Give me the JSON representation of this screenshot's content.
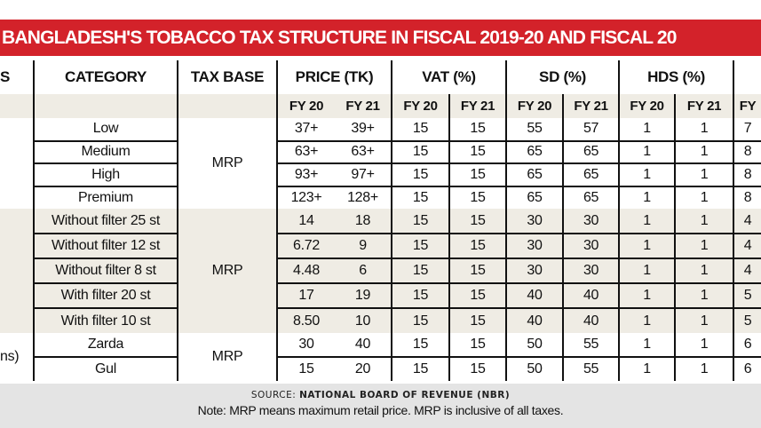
{
  "title": "BANGLADESH'S TOBACCO TAX STRUCTURE IN FISCAL 2019-20 AND FISCAL 20",
  "colors": {
    "title_bar": "#d3222a",
    "row_band": "#efece4",
    "footer_bg": "#e4e4e4"
  },
  "table": {
    "headers": {
      "first_partial": "S",
      "category": "CATEGORY",
      "tax_base": "TAX BASE",
      "price": "PRICE (TK)",
      "vat": "VAT (%)",
      "sd": "SD (%)",
      "hds": "HDS (%)",
      "last_partial": ""
    },
    "fy_labels": {
      "fy20": "FY 20",
      "fy21": "FY 21",
      "last_partial": "FY"
    },
    "groups": [
      {
        "label": "",
        "tax_base": "MRP",
        "banded": false,
        "rows": [
          {
            "category": "Low",
            "price": [
              "37+",
              "39+"
            ],
            "vat": [
              "15",
              "15"
            ],
            "sd": [
              "55",
              "57"
            ],
            "hds": [
              "1",
              "1"
            ],
            "last_partial": "7"
          },
          {
            "category": "Medium",
            "price": [
              "63+",
              "63+"
            ],
            "vat": [
              "15",
              "15"
            ],
            "sd": [
              "65",
              "65"
            ],
            "hds": [
              "1",
              "1"
            ],
            "last_partial": "8"
          },
          {
            "category": "High",
            "price": [
              "93+",
              "97+"
            ],
            "vat": [
              "15",
              "15"
            ],
            "sd": [
              "65",
              "65"
            ],
            "hds": [
              "1",
              "1"
            ],
            "last_partial": "8"
          },
          {
            "category": "Premium",
            "price": [
              "123+",
              "128+"
            ],
            "vat": [
              "15",
              "15"
            ],
            "sd": [
              "65",
              "65"
            ],
            "hds": [
              "1",
              "1"
            ],
            "last_partial": "8"
          }
        ]
      },
      {
        "label": "",
        "tax_base": "MRP",
        "banded": true,
        "rows": [
          {
            "category": "Without filter 25 st",
            "price": [
              "14",
              "18"
            ],
            "vat": [
              "15",
              "15"
            ],
            "sd": [
              "30",
              "30"
            ],
            "hds": [
              "1",
              "1"
            ],
            "last_partial": "4"
          },
          {
            "category": "Without filter 12 st",
            "price": [
              "6.72",
              "9"
            ],
            "vat": [
              "15",
              "15"
            ],
            "sd": [
              "30",
              "30"
            ],
            "hds": [
              "1",
              "1"
            ],
            "last_partial": "4"
          },
          {
            "category": "Without filter 8 st",
            "price": [
              "4.48",
              "6"
            ],
            "vat": [
              "15",
              "15"
            ],
            "sd": [
              "30",
              "30"
            ],
            "hds": [
              "1",
              "1"
            ],
            "last_partial": "4"
          },
          {
            "category": "With filter 20 st",
            "price": [
              "17",
              "19"
            ],
            "vat": [
              "15",
              "15"
            ],
            "sd": [
              "40",
              "40"
            ],
            "hds": [
              "1",
              "1"
            ],
            "last_partial": "5"
          },
          {
            "category": "With filter 10 st",
            "price": [
              "8.50",
              "10"
            ],
            "vat": [
              "15",
              "15"
            ],
            "sd": [
              "40",
              "40"
            ],
            "hds": [
              "1",
              "1"
            ],
            "last_partial": "5"
          }
        ]
      },
      {
        "label": "ns)",
        "tax_base": "MRP",
        "banded": false,
        "rows": [
          {
            "category": "Zarda",
            "price": [
              "30",
              "40"
            ],
            "vat": [
              "15",
              "15"
            ],
            "sd": [
              "50",
              "55"
            ],
            "hds": [
              "1",
              "1"
            ],
            "last_partial": "6"
          },
          {
            "category": "Gul",
            "price": [
              "15",
              "20"
            ],
            "vat": [
              "15",
              "15"
            ],
            "sd": [
              "50",
              "55"
            ],
            "hds": [
              "1",
              "1"
            ],
            "last_partial": "6"
          }
        ]
      }
    ]
  },
  "footer": {
    "source_label": "SOURCE:",
    "source_name": "NATIONAL BOARD OF REVENUE (NBR)",
    "note": "Note: MRP means maximum retail price. MRP is inclusive of all taxes."
  }
}
